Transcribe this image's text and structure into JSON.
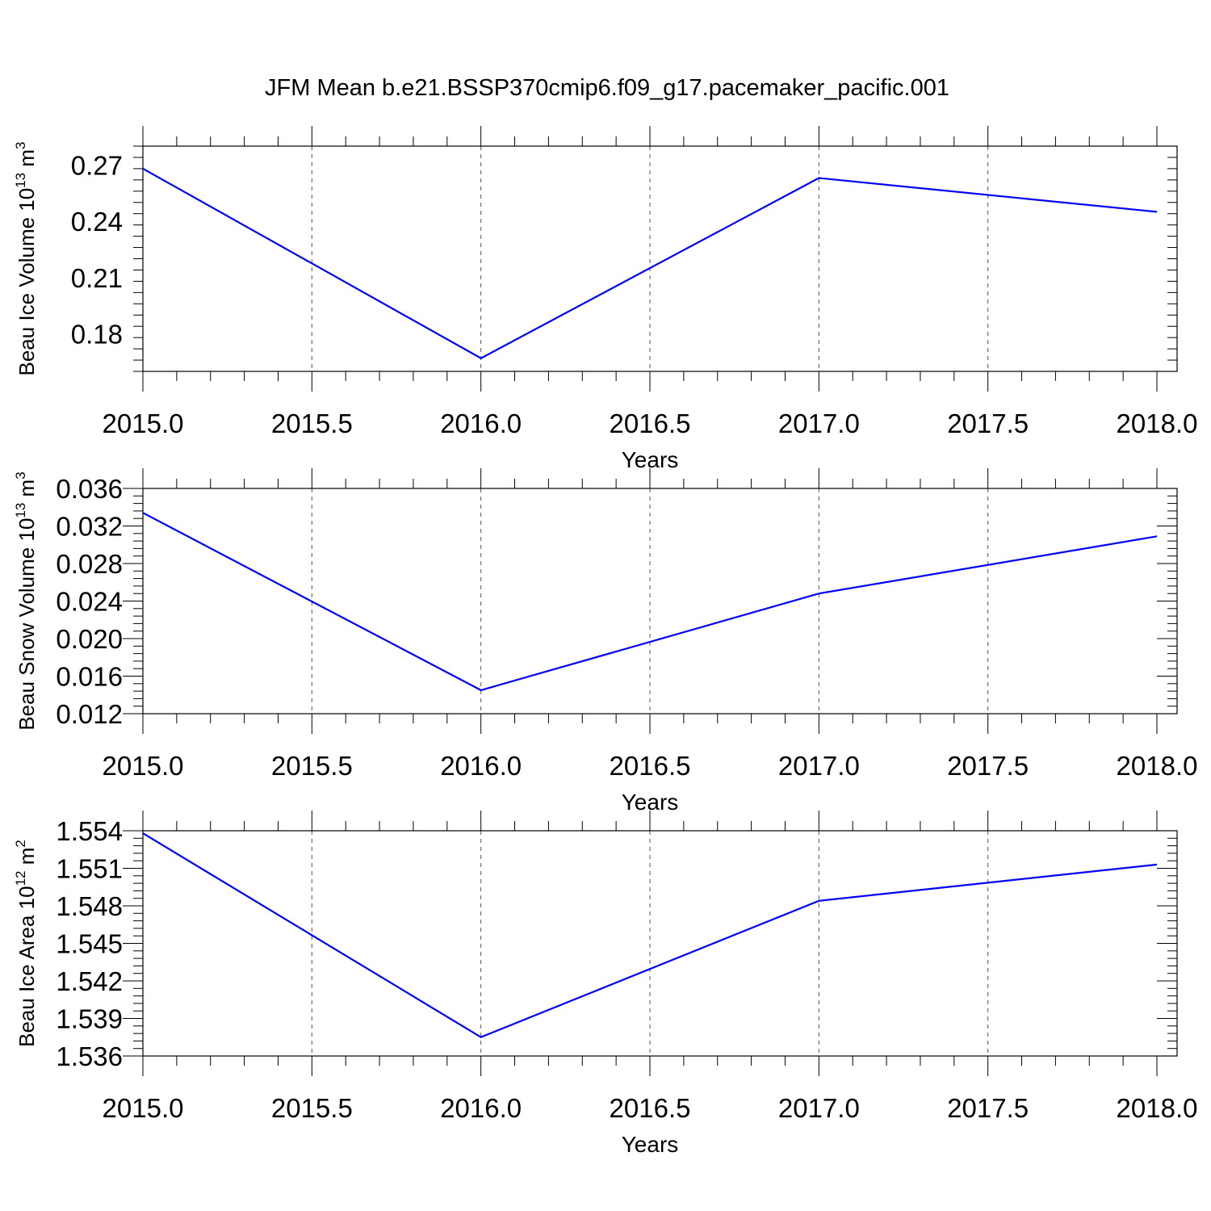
{
  "title": "JFM Mean b.e21.BSSP370cmip6.f09_g17.pacemaker_pacific.001",
  "chart_data": [
    {
      "type": "line",
      "xlabel": "Years",
      "ylabel_prefix": "Beau Ice Volume 10",
      "ylabel_exp": "13",
      "ylabel_unit": " m",
      "ylabel_unit_exp": "3",
      "xlim": [
        2015.0,
        2018.0
      ],
      "ylim": [
        0.16,
        0.28
      ],
      "x_ticks": [
        "2015.0",
        "2015.5",
        "2016.0",
        "2016.5",
        "2017.0",
        "2017.5",
        "2018.0"
      ],
      "y_ticks": [
        "0.18",
        "0.21",
        "0.24",
        "0.27"
      ],
      "y_minor_step": 0.006,
      "grid": "x-dashed",
      "color": "#0000ff",
      "x": [
        2015,
        2016,
        2017,
        2018
      ],
      "y": [
        0.268,
        0.167,
        0.263,
        0.245
      ]
    },
    {
      "type": "line",
      "xlabel": "Years",
      "ylabel_prefix": "Beau Snow Volume 10",
      "ylabel_exp": "13",
      "ylabel_unit": " m",
      "ylabel_unit_exp": "3",
      "xlim": [
        2015.0,
        2018.0
      ],
      "ylim": [
        0.012,
        0.036
      ],
      "x_ticks": [
        "2015.0",
        "2015.5",
        "2016.0",
        "2016.5",
        "2017.0",
        "2017.5",
        "2018.0"
      ],
      "y_ticks": [
        "0.012",
        "0.016",
        "0.020",
        "0.024",
        "0.028",
        "0.032",
        "0.036"
      ],
      "y_minor_step": 0.0008,
      "grid": "x-dashed",
      "color": "#0000ff",
      "x": [
        2015,
        2016,
        2017,
        2018
      ],
      "y": [
        0.0334,
        0.0145,
        0.0248,
        0.0309
      ]
    },
    {
      "type": "line",
      "xlabel": "Years",
      "ylabel_prefix": "Beau Ice Area 10",
      "ylabel_exp": "12",
      "ylabel_unit": " m",
      "ylabel_unit_exp": "2",
      "xlim": [
        2015.0,
        2018.0
      ],
      "ylim": [
        1.536,
        1.554
      ],
      "x_ticks": [
        "2015.0",
        "2015.5",
        "2016.0",
        "2016.5",
        "2017.0",
        "2017.5",
        "2018.0"
      ],
      "y_ticks": [
        "1.536",
        "1.539",
        "1.542",
        "1.545",
        "1.548",
        "1.551",
        "1.554"
      ],
      "y_minor_step": 0.0006,
      "grid": "x-dashed",
      "color": "#0000ff",
      "x": [
        2015,
        2016,
        2017,
        2018
      ],
      "y": [
        1.5538,
        1.5375,
        1.5484,
        1.5513
      ]
    }
  ]
}
